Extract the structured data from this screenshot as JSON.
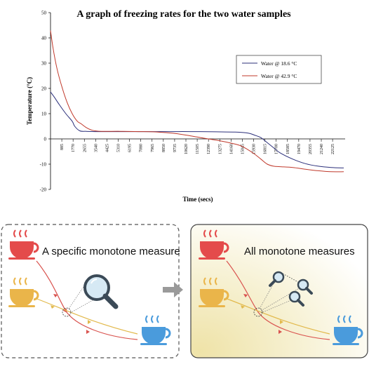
{
  "chart_data": {
    "type": "line",
    "title": "A graph of freezing rates for the two water samples",
    "xlabel": "Time (secs)",
    "ylabel": "Temperature (°C)",
    "xlim": [
      0,
      23000
    ],
    "ylim": [
      -20,
      50
    ],
    "y_ticks": [
      50,
      40,
      30,
      20,
      10,
      0,
      -10,
      -20
    ],
    "x_ticks": [
      885,
      1770,
      2655,
      3540,
      4425,
      5310,
      6195,
      7080,
      7965,
      8850,
      9735,
      10620,
      11505,
      12390,
      13275,
      14160,
      15045,
      15930,
      16815,
      17700,
      18585,
      19470,
      20355,
      21240,
      22125
    ],
    "grid": false,
    "legend_position": "top-right",
    "series": [
      {
        "name": "Water @ 18.6 °C",
        "color": "#2b2f7a",
        "x": [
          0,
          300,
          700,
          1200,
          1700,
          1900,
          2300,
          2800,
          3500,
          5000,
          7000,
          9000,
          11000,
          13000,
          14500,
          15500,
          16000,
          16500,
          17000,
          17500,
          18000,
          19000,
          20000,
          21000,
          22000,
          23000
        ],
        "y": [
          18.6,
          16.5,
          13.5,
          10,
          7,
          5,
          3.2,
          3,
          2.9,
          2.9,
          2.9,
          2.9,
          2.9,
          2.8,
          2.7,
          2.3,
          1.5,
          0.5,
          -1.5,
          -3.5,
          -5.5,
          -8,
          -9.8,
          -10.8,
          -11.3,
          -11.5
        ]
      },
      {
        "name": "Water @ 42.9 °C",
        "color": "#c0392b",
        "x": [
          0,
          200,
          500,
          900,
          1300,
          1700,
          2100,
          2400,
          2800,
          3300,
          4000,
          5500,
          7000,
          8000,
          9000,
          10000,
          11000,
          12000,
          13000,
          14000,
          14800,
          15400,
          16000,
          16500,
          17000,
          17500,
          18000,
          19000,
          20000,
          21000,
          22000,
          23000
        ],
        "y": [
          42.9,
          36,
          28,
          20.5,
          14.5,
          10,
          7,
          6,
          4.5,
          3.4,
          3,
          3,
          2.9,
          2.8,
          2.5,
          2,
          1.2,
          0.3,
          -0.5,
          -1.5,
          -2.5,
          -4,
          -6,
          -8,
          -10,
          -10.8,
          -11,
          -11.3,
          -12,
          -12.6,
          -13,
          -13
        ]
      }
    ]
  },
  "illustration": {
    "left_panel_title": "A specific monotone measure",
    "right_panel_title": "All monotone measures",
    "icon_names": [
      "hot-cup-icon",
      "warm-cup-icon",
      "cold-cup-icon",
      "magnifier-icon",
      "arrow-right-icon"
    ],
    "colors": {
      "hot_cup": "#e44b4b",
      "warm_cup": "#eab54a",
      "cold_cup": "#4a9bdc",
      "hot_path": "#d9534f",
      "warm_path": "#e2b94c",
      "right_panel_glow": "#f3ecc2",
      "arrow": "#9a9a9a"
    }
  }
}
